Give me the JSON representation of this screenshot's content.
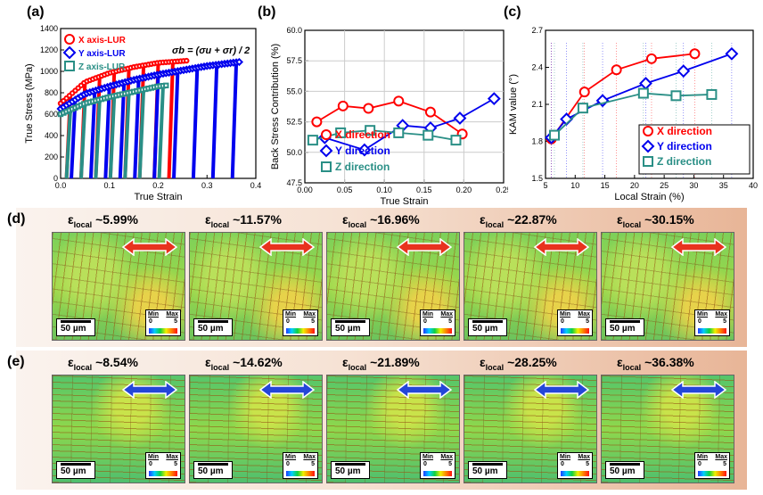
{
  "panel_letters": {
    "a": "(a)",
    "b": "(b)",
    "c": "(c)",
    "d": "(d)",
    "e": "(e)"
  },
  "chart_data": [
    {
      "id": "a",
      "type": "scatter",
      "title": "",
      "xlabel": "True Strain",
      "ylabel": "True Stress (MPa)",
      "xlim": [
        0,
        0.4
      ],
      "ylim": [
        0,
        1400
      ],
      "xticks": [
        "0.0",
        "0.1",
        "0.2",
        "0.3",
        "0.4"
      ],
      "yticks": [
        "0",
        "200",
        "400",
        "600",
        "800",
        "1000",
        "1200",
        "1400"
      ],
      "equation": "σb = (σu + σr) / 2",
      "legend_position": "top-left",
      "series": [
        {
          "name": "X axis-LUR",
          "color": "#ff0000",
          "marker": "circle",
          "envelope": {
            "x": [
              0.0,
              0.05,
              0.1,
              0.15,
              0.2,
              0.26
            ],
            "y": [
              700,
              900,
              985,
              1040,
              1080,
              1100
            ]
          },
          "unload_strains": [
            0.02,
            0.05,
            0.08,
            0.11,
            0.14,
            0.17,
            0.2,
            0.23
          ]
        },
        {
          "name": "Y axis-LUR",
          "color": "#0000ee",
          "marker": "diamond",
          "envelope": {
            "x": [
              0.0,
              0.05,
              0.1,
              0.15,
              0.2,
              0.25,
              0.3,
              0.37
            ],
            "y": [
              650,
              790,
              860,
              920,
              970,
              1010,
              1050,
              1090
            ]
          },
          "unload_strains": [
            0.03,
            0.07,
            0.1,
            0.13,
            0.16,
            0.2,
            0.24,
            0.28,
            0.32,
            0.36
          ]
        },
        {
          "name": "Z axis-LUR",
          "color": "#2a8f86",
          "marker": "square",
          "envelope": {
            "x": [
              0.0,
              0.05,
              0.1,
              0.15,
              0.2,
              0.22
            ],
            "y": [
              600,
              700,
              760,
              810,
              860,
              870
            ]
          },
          "unload_strains": [
            0.02,
            0.05,
            0.08,
            0.11,
            0.14,
            0.17,
            0.21
          ]
        }
      ]
    },
    {
      "id": "b",
      "type": "line",
      "xlabel": "True Strain",
      "ylabel": "Back Stress Contribution (%)",
      "xlim": [
        0,
        0.25
      ],
      "ylim": [
        47.5,
        60
      ],
      "xticks": [
        "0.00",
        "0.05",
        "0.10",
        "0.15",
        "0.20",
        "0.25"
      ],
      "yticks": [
        "47.5",
        "50.0",
        "52.5",
        "55.0",
        "57.5",
        "60.0"
      ],
      "legend_position": "bottom-left",
      "series": [
        {
          "name": "X direction",
          "color": "#ff0000",
          "marker": "circle",
          "x": [
            0.015,
            0.048,
            0.08,
            0.118,
            0.158,
            0.198
          ],
          "y": [
            52.5,
            53.8,
            53.6,
            54.2,
            53.3,
            51.5
          ]
        },
        {
          "name": "Y direction",
          "color": "#0000ee",
          "marker": "diamond",
          "x": [
            0.025,
            0.075,
            0.123,
            0.158,
            0.195,
            0.238
          ],
          "y": [
            51.2,
            50.2,
            52.2,
            52.0,
            52.8,
            54.4
          ]
        },
        {
          "name": "Z direction",
          "color": "#2a8f86",
          "marker": "square",
          "x": [
            0.01,
            0.045,
            0.082,
            0.118,
            0.155,
            0.19
          ],
          "y": [
            51.0,
            51.6,
            51.8,
            51.6,
            51.4,
            51.0
          ]
        }
      ]
    },
    {
      "id": "c",
      "type": "line",
      "xlabel": "Local Strain (%)",
      "ylabel": "KAM value (°)",
      "xlim": [
        5,
        40
      ],
      "ylim": [
        1.5,
        2.7
      ],
      "xticks": [
        "5",
        "10",
        "15",
        "20",
        "25",
        "30",
        "35",
        "40"
      ],
      "yticks": [
        "1.5",
        "1.8",
        "2.1",
        "2.4",
        "2.7"
      ],
      "legend_position": "bottom-right",
      "series": [
        {
          "name": "X direction",
          "color": "#ff0000",
          "marker": "circle",
          "x": [
            5.99,
            11.57,
            16.96,
            22.87,
            30.15
          ],
          "y": [
            1.82,
            2.2,
            2.38,
            2.47,
            2.51
          ]
        },
        {
          "name": "Y direction",
          "color": "#0000ee",
          "marker": "diamond",
          "x": [
            5.99,
            8.54,
            14.62,
            21.89,
            28.25,
            36.38
          ],
          "y": [
            1.83,
            1.98,
            2.13,
            2.27,
            2.37,
            2.51
          ]
        },
        {
          "name": "Z direction",
          "color": "#2a8f86",
          "marker": "square",
          "x": [
            6.5,
            11.3,
            21.5,
            27.0,
            33.0
          ],
          "y": [
            1.85,
            2.07,
            2.19,
            2.17,
            2.18
          ]
        }
      ]
    }
  ],
  "maps": {
    "scale_bar": "50 µm",
    "key_min": "Min",
    "key_max": "Max",
    "key_lo": "0",
    "key_hi": "5",
    "eps_symbol": "ε",
    "eps_sub": "local",
    "row_d": {
      "arrow_color": "#e8321e",
      "labels": [
        "~5.99%",
        "~11.57%",
        "~16.96%",
        "~22.87%",
        "~30.15%"
      ]
    },
    "row_e": {
      "arrow_color": "#2446d8",
      "labels": [
        "~8.54%",
        "~14.62%",
        "~21.89%",
        "~28.25%",
        "~36.38%"
      ]
    }
  }
}
